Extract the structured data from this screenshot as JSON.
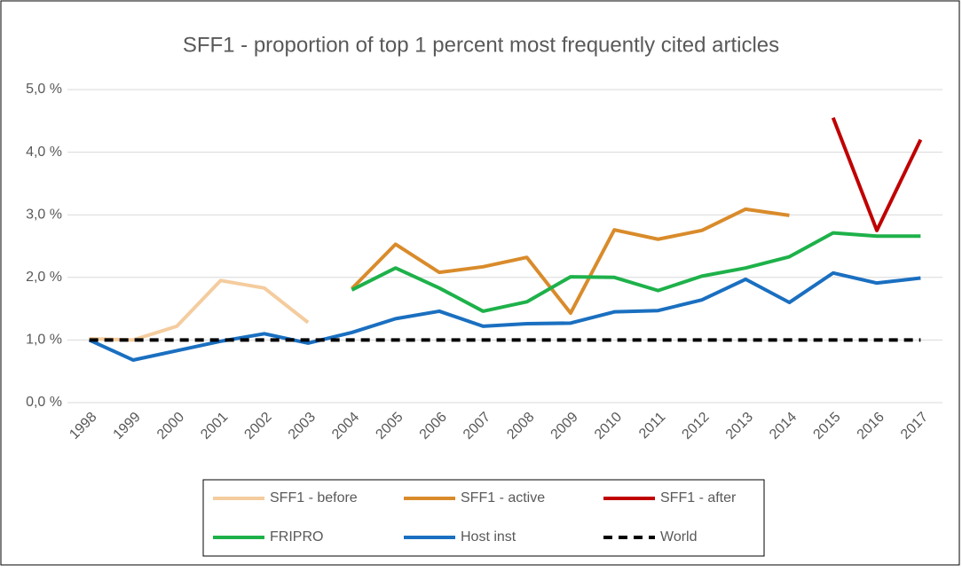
{
  "chart_data": {
    "type": "line",
    "title": "SFF1 - proportion of top 1 percent most frequently cited articles",
    "categories": [
      "1998",
      "1999",
      "2000",
      "2001",
      "2002",
      "2003",
      "2004",
      "2005",
      "2006",
      "2007",
      "2008",
      "2009",
      "2010",
      "2011",
      "2012",
      "2013",
      "2014",
      "2015",
      "2016",
      "2017"
    ],
    "series": [
      {
        "name": "SFF1 - before",
        "color": "#f4cc9e",
        "values": [
          1.02,
          1.0,
          1.22,
          1.95,
          1.83,
          1.28,
          null,
          null,
          null,
          null,
          null,
          null,
          null,
          null,
          null,
          null,
          null,
          null,
          null,
          null
        ]
      },
      {
        "name": "SFF1 - active",
        "color": "#d98b2b",
        "values": [
          null,
          null,
          null,
          null,
          null,
          null,
          1.82,
          2.53,
          2.08,
          2.17,
          2.32,
          1.43,
          2.76,
          2.61,
          2.75,
          3.09,
          2.99,
          null,
          null,
          null
        ]
      },
      {
        "name": "SFF1 - after",
        "color": "#c00000",
        "values": [
          null,
          null,
          null,
          null,
          null,
          null,
          null,
          null,
          null,
          null,
          null,
          null,
          null,
          null,
          null,
          null,
          null,
          4.55,
          2.75,
          4.2
        ]
      },
      {
        "name": "FRIPRO",
        "color": "#1eb14a",
        "values": [
          null,
          null,
          null,
          null,
          null,
          null,
          1.8,
          2.15,
          1.83,
          1.46,
          1.61,
          2.01,
          2.0,
          1.79,
          2.02,
          2.15,
          2.33,
          2.71,
          2.66,
          2.66
        ]
      },
      {
        "name": "Host inst",
        "color": "#1a6fc0",
        "values": [
          1.0,
          0.68,
          0.83,
          0.98,
          1.1,
          0.95,
          1.12,
          1.34,
          1.46,
          1.22,
          1.26,
          1.27,
          1.45,
          1.47,
          1.64,
          1.97,
          1.6,
          2.07,
          1.91,
          1.99
        ]
      },
      {
        "name": "World",
        "color": "#000000",
        "dashed": true,
        "values": [
          1.0,
          1.0,
          1.0,
          1.0,
          1.0,
          1.0,
          1.0,
          1.0,
          1.0,
          1.0,
          1.0,
          1.0,
          1.0,
          1.0,
          1.0,
          1.0,
          1.0,
          1.0,
          1.0,
          1.0
        ]
      }
    ],
    "ylim": [
      0,
      5
    ],
    "yticks": [
      {
        "value": 0,
        "label": "0,0 %"
      },
      {
        "value": 1,
        "label": "1,0 %"
      },
      {
        "value": 2,
        "label": "2,0 %"
      },
      {
        "value": 3,
        "label": "3,0 %"
      },
      {
        "value": 4,
        "label": "4,0 %"
      },
      {
        "value": 5,
        "label": "5,0 %"
      }
    ],
    "grid": true,
    "legend": "bottom"
  }
}
